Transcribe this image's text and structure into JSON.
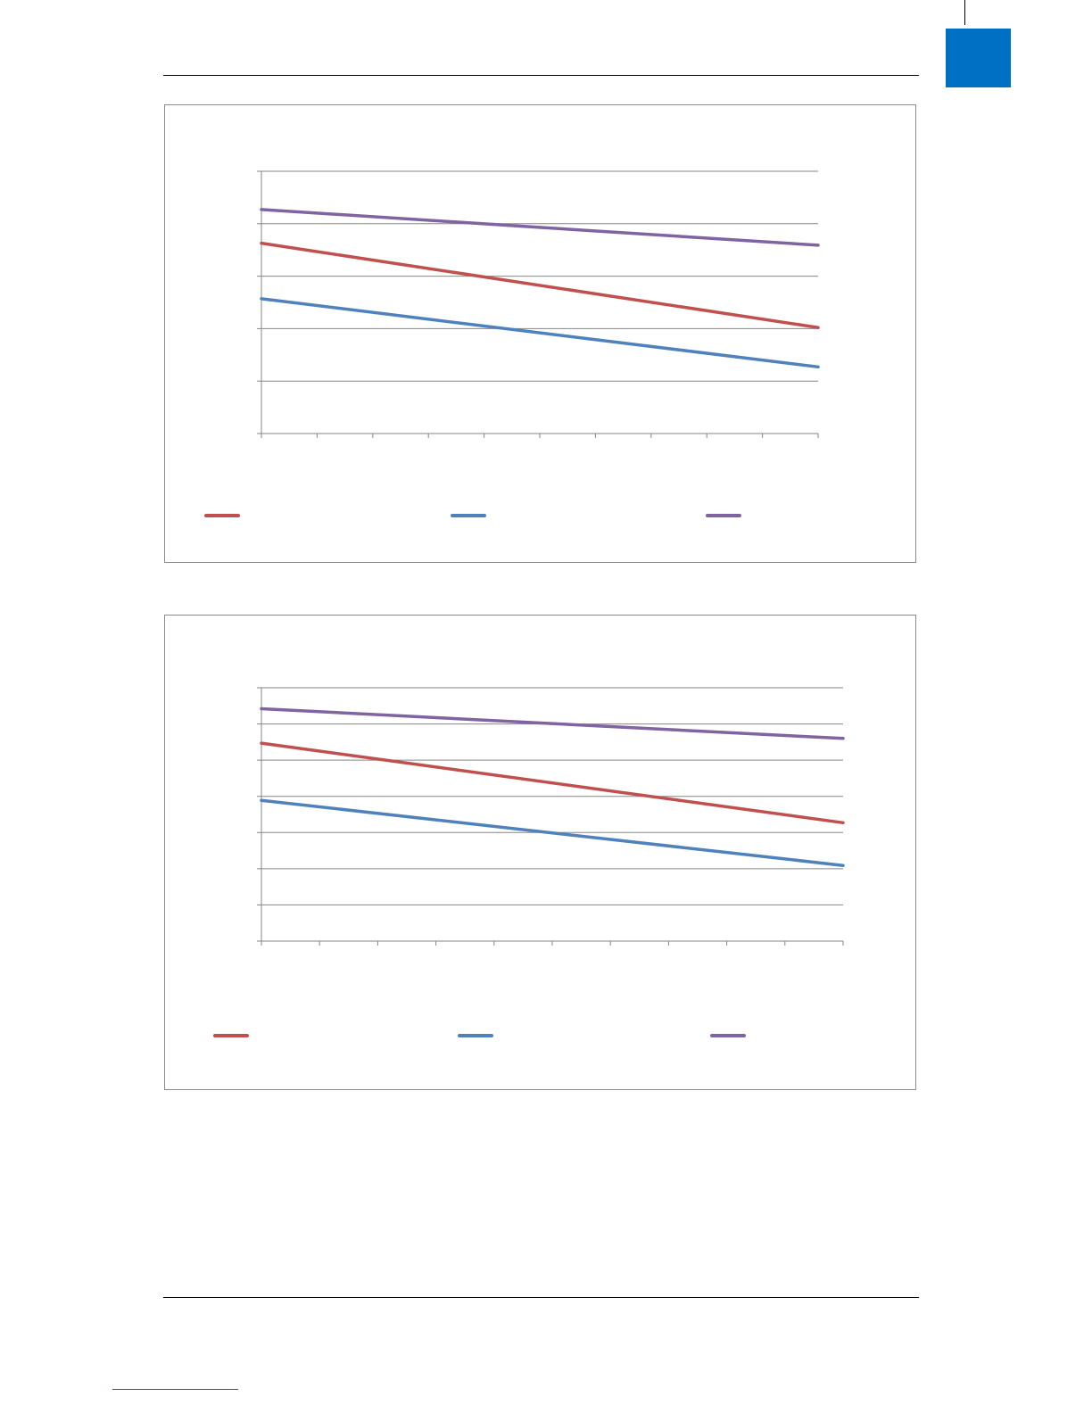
{
  "page": {
    "accent_color": "#0070c4"
  },
  "chart_data": [
    {
      "type": "line",
      "title": "",
      "xlabel": "",
      "ylabel": "",
      "x": [
        0,
        1,
        2,
        3,
        4,
        5,
        6,
        7,
        8,
        9,
        10
      ],
      "xlim": [
        0,
        10
      ],
      "ylim": [
        0,
        5
      ],
      "y_gridlines": [
        1,
        2,
        3,
        4,
        5
      ],
      "grid": true,
      "legend_position": "bottom",
      "series": [
        {
          "color": "#c0504d",
          "x": [
            0,
            10
          ],
          "values": [
            3.63,
            2.02
          ]
        },
        {
          "color": "#4f81bd",
          "x": [
            0,
            10
          ],
          "values": [
            2.57,
            1.27
          ]
        },
        {
          "color": "#8064a2",
          "x": [
            0,
            10
          ],
          "values": [
            4.27,
            3.59
          ]
        }
      ]
    },
    {
      "type": "line",
      "title": "",
      "xlabel": "",
      "ylabel": "",
      "x": [
        0,
        1,
        2,
        3,
        4,
        5,
        6,
        7,
        8,
        9,
        10
      ],
      "xlim": [
        0,
        10
      ],
      "ylim": [
        0,
        7
      ],
      "y_gridlines": [
        1,
        2,
        3,
        4,
        5,
        6,
        7
      ],
      "grid": true,
      "legend_position": "bottom",
      "series": [
        {
          "color": "#c0504d",
          "x": [
            0,
            10
          ],
          "values": [
            5.47,
            3.27
          ]
        },
        {
          "color": "#4f81bd",
          "x": [
            0,
            10
          ],
          "values": [
            3.89,
            2.09
          ]
        },
        {
          "color": "#8064a2",
          "x": [
            0,
            10
          ],
          "values": [
            6.42,
            5.6
          ]
        }
      ]
    }
  ]
}
